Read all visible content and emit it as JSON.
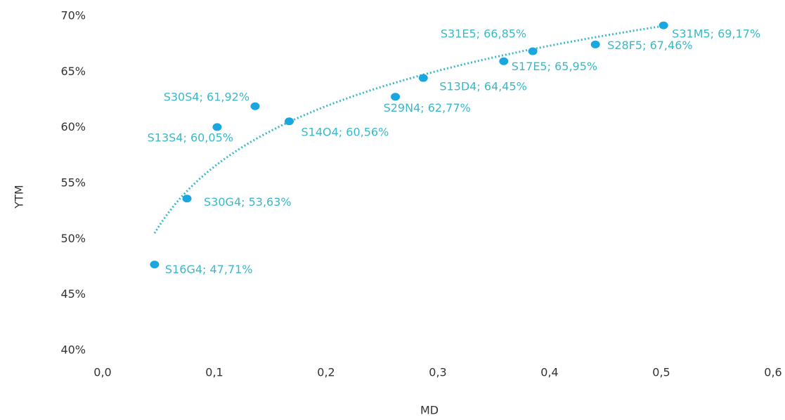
{
  "chart_data": {
    "type": "scatter",
    "xlabel": "MD",
    "ylabel": "YTM",
    "names": [
      "S16G4",
      "S30G4",
      "S13S4",
      "S30S4",
      "S14O4",
      "S29N4",
      "S13D4",
      "S17E5",
      "S31E5",
      "S28F5",
      "S31M5"
    ],
    "x": [
      0.0465,
      0.0755,
      0.1025,
      0.1365,
      0.167,
      0.262,
      0.287,
      0.359,
      0.385,
      0.441,
      0.502
    ],
    "values": [
      47.71,
      53.63,
      60.05,
      61.92,
      60.56,
      62.77,
      64.45,
      65.95,
      66.85,
      67.46,
      69.17
    ],
    "value_labels": [
      "S16G4; 47,71%",
      "S30G4; 53,63%",
      "S13S4; 60,05%",
      "S30S4; 61,92%",
      "S14O4; 60,56%",
      "S29N4; 62,77%",
      "S13D4; 64,45%",
      "S17E5; 65,95%",
      "S31E5; 66,85%",
      "S28F5; 67,46%",
      "S31M5; 69,17%"
    ],
    "color": "#1aa7e0",
    "label_color": "#3bb8c8",
    "trendline": "logarithmic",
    "xlim": [
      0,
      0.6
    ],
    "xticks": [
      {
        "value": 0,
        "label": "0,0"
      },
      {
        "value": 0.1,
        "label": "0,1"
      },
      {
        "value": 0.2,
        "label": "0,2"
      },
      {
        "value": 0.3,
        "label": "0,3"
      },
      {
        "value": 0.4,
        "label": "0,4"
      },
      {
        "value": 0.5,
        "label": "0,5"
      },
      {
        "value": 0.6,
        "label": "0,6"
      }
    ],
    "ylim": [
      40,
      70
    ],
    "yticks": [
      {
        "value": 40,
        "label": "40%"
      },
      {
        "value": 45,
        "label": "45%"
      },
      {
        "value": 50,
        "label": "50%"
      },
      {
        "value": 55,
        "label": "55%"
      },
      {
        "value": 60,
        "label": "60%"
      },
      {
        "value": 65,
        "label": "65%"
      },
      {
        "value": 70,
        "label": "70%"
      }
    ],
    "grid": false
  }
}
